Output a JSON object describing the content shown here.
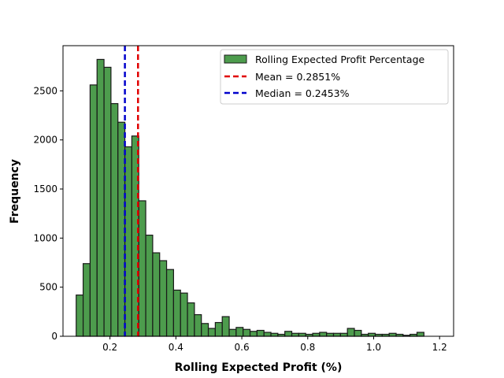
{
  "chart_data": {
    "type": "bar",
    "title": "",
    "xlabel": "Rolling Expected Profit (%)",
    "ylabel": "Frequency",
    "xlim": [
      0.0575,
      1.2425
    ],
    "ylim": [
      0,
      2960
    ],
    "xticks": [
      0.2,
      0.4,
      0.6,
      0.8,
      1.0,
      1.2
    ],
    "xtick_labels": [
      "0.2",
      "0.4",
      "0.6",
      "0.8",
      "1.0",
      "1.2"
    ],
    "yticks": [
      0,
      500,
      1000,
      1500,
      2000,
      2500
    ],
    "ytick_labels": [
      "0",
      "500",
      "1000",
      "1500",
      "2000",
      "2500"
    ],
    "grid": false,
    "legend_position": "top-right",
    "bin_start": 0.0975,
    "bin_width": 0.0211,
    "values": [
      420,
      740,
      2560,
      2820,
      2740,
      2370,
      2180,
      1930,
      2040,
      1380,
      1030,
      850,
      770,
      680,
      470,
      440,
      340,
      220,
      130,
      80,
      140,
      200,
      70,
      90,
      70,
      50,
      60,
      40,
      30,
      20,
      50,
      30,
      30,
      20,
      30,
      40,
      30,
      30,
      30,
      80,
      60,
      20,
      30,
      20,
      20,
      30,
      20,
      10,
      20,
      40
    ],
    "series": [
      {
        "name": "Rolling Expected Profit Percentage",
        "color": "#2e8b2e"
      }
    ],
    "reference_lines": [
      {
        "name": "Mean = 0.2851%",
        "value": 0.2851,
        "color": "#e00000",
        "style": "dashed"
      },
      {
        "name": "Median = 0.2453%",
        "value": 0.2453,
        "color": "#0000cc",
        "style": "dashed"
      }
    ]
  }
}
